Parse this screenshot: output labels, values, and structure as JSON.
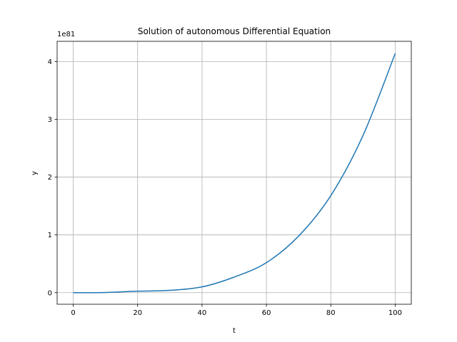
{
  "chart_data": {
    "type": "line",
    "title": "Solution of autonomous Differential Equation",
    "xlabel": "t",
    "ylabel": "y",
    "offset_text": "1e81",
    "xlim": [
      -5,
      105
    ],
    "ylim": [
      -0.2,
      4.35
    ],
    "xticks": [
      0,
      20,
      40,
      60,
      80,
      100
    ],
    "xtick_labels": [
      "0",
      "20",
      "40",
      "60",
      "80",
      "100"
    ],
    "yticks": [
      0,
      1,
      2,
      3,
      4
    ],
    "ytick_labels": [
      "0",
      "1",
      "2",
      "3",
      "4"
    ],
    "grid": true,
    "legend": "none",
    "series": [
      {
        "color": "#1f77b4",
        "x": [
          0,
          10,
          20,
          30,
          40,
          50,
          60,
          70,
          80,
          90,
          100
        ],
        "y": [
          0.0,
          0.004,
          0.026,
          0.04,
          0.1,
          0.27,
          0.52,
          0.98,
          1.68,
          2.72,
          4.14
        ]
      }
    ]
  }
}
